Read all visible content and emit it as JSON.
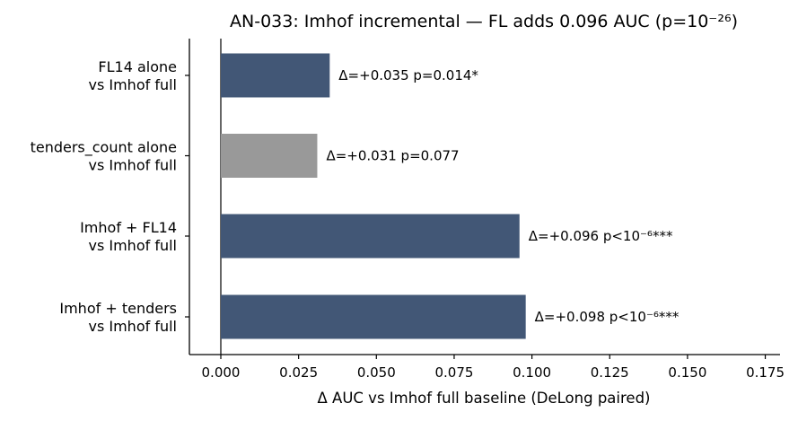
{
  "chart_data": {
    "type": "bar",
    "orientation": "horizontal",
    "title": "AN-033: Imhof incremental — FL adds 0.096 AUC (p=10⁻²⁶)",
    "xlabel": "Δ AUC vs Imhof full baseline (DeLong paired)",
    "ylabel": "",
    "xlim": [
      -0.01,
      0.18
    ],
    "xticks": [
      "0.000",
      "0.025",
      "0.050",
      "0.075",
      "0.100",
      "0.125",
      "0.150",
      "0.175"
    ],
    "xtick_values": [
      0,
      0.025,
      0.05,
      0.075,
      0.1,
      0.125,
      0.15,
      0.175
    ],
    "grid": false,
    "zero_line": true,
    "categories": [
      [
        "FL14 alone",
        "vs Imhof full"
      ],
      [
        "tenders_count alone",
        "vs Imhof full"
      ],
      [
        "Imhof + FL14",
        "vs Imhof full"
      ],
      [
        "Imhof + tenders",
        "vs Imhof full"
      ]
    ],
    "values": [
      0.035,
      0.031,
      0.096,
      0.098
    ],
    "labels": [
      "Δ=+0.035  p=0.014*",
      "Δ=+0.031  p=0.077",
      "Δ=+0.096  p<10⁻⁶***",
      "Δ=+0.098  p<10⁻⁶***"
    ],
    "colors": [
      "#425776",
      "#999999",
      "#425776",
      "#425776"
    ]
  }
}
